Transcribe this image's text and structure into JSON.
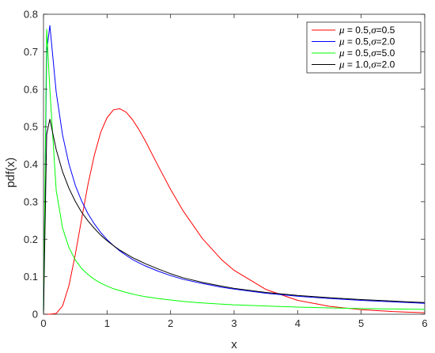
{
  "chart_data": {
    "type": "line",
    "xlabel": "x",
    "ylabel": "pdf(x)",
    "xlim": [
      0,
      6
    ],
    "ylim": [
      0,
      0.8
    ],
    "xticks": [
      "0",
      "1",
      "2",
      "3",
      "4",
      "5",
      "6"
    ],
    "yticks": [
      "0",
      "0.1",
      "0.2",
      "0.3",
      "0.4",
      "0.5",
      "0.6",
      "0.7",
      "0.8"
    ],
    "grid": false,
    "legend_position": "top-right",
    "x": [
      0,
      0.05,
      0.1,
      0.2,
      0.3,
      0.4,
      0.5,
      0.6,
      0.7,
      0.8,
      0.9,
      1.0,
      1.1,
      1.2,
      1.3,
      1.4,
      1.5,
      1.6,
      1.8,
      2.0,
      2.2,
      2.5,
      2.8,
      3.0,
      3.5,
      4.0,
      4.5,
      5.0,
      5.5,
      6.0
    ],
    "series": [
      {
        "name": "μ = 0.5,σ=0.5",
        "mu_text": "μ",
        "mu_value": " = 0.5,",
        "sigma_text": "σ",
        "sigma_value": "=0.5",
        "color": "#ff0000",
        "values": [
          0,
          0,
          0,
          0.002,
          0.022,
          0.076,
          0.159,
          0.254,
          0.346,
          0.424,
          0.485,
          0.524,
          0.545,
          0.548,
          0.539,
          0.519,
          0.493,
          0.463,
          0.397,
          0.333,
          0.275,
          0.202,
          0.146,
          0.117,
          0.066,
          0.037,
          0.021,
          0.012,
          0.007,
          0.004
        ]
      },
      {
        "name": "μ = 0.5,σ=2.0",
        "mu_text": "μ",
        "mu_value": " = 0.5,",
        "sigma_text": "σ",
        "sigma_value": "=2.0",
        "color": "#0000ff",
        "values": [
          0,
          0.7,
          0.77,
          0.592,
          0.478,
          0.401,
          0.344,
          0.302,
          0.268,
          0.241,
          0.218,
          0.199,
          0.183,
          0.169,
          0.157,
          0.146,
          0.137,
          0.129,
          0.115,
          0.103,
          0.093,
          0.082,
          0.072,
          0.067,
          0.056,
          0.048,
          0.042,
          0.037,
          0.033,
          0.029
        ]
      },
      {
        "name": "μ = 0.5,σ=5.0",
        "mu_text": "μ",
        "mu_value": " = 0.5,",
        "sigma_text": "σ",
        "sigma_value": "=5.0",
        "color": "#00ff00",
        "values": [
          0,
          0.76,
          0.6,
          0.33,
          0.23,
          0.178,
          0.145,
          0.122,
          0.106,
          0.093,
          0.083,
          0.075,
          0.068,
          0.063,
          0.058,
          0.054,
          0.05,
          0.047,
          0.042,
          0.038,
          0.034,
          0.03,
          0.027,
          0.025,
          0.022,
          0.019,
          0.017,
          0.015,
          0.014,
          0.013
        ]
      },
      {
        "name": "μ = 1.0,σ=2.0",
        "mu_text": "μ",
        "mu_value": " = 1.0,",
        "sigma_text": "σ",
        "sigma_value": "=2.0",
        "color": "#000000",
        "values": [
          0,
          0.48,
          0.52,
          0.439,
          0.38,
          0.336,
          0.301,
          0.272,
          0.249,
          0.229,
          0.211,
          0.196,
          0.183,
          0.171,
          0.161,
          0.151,
          0.143,
          0.135,
          0.121,
          0.108,
          0.097,
          0.085,
          0.075,
          0.069,
          0.058,
          0.05,
          0.044,
          0.039,
          0.035,
          0.031
        ]
      }
    ]
  }
}
